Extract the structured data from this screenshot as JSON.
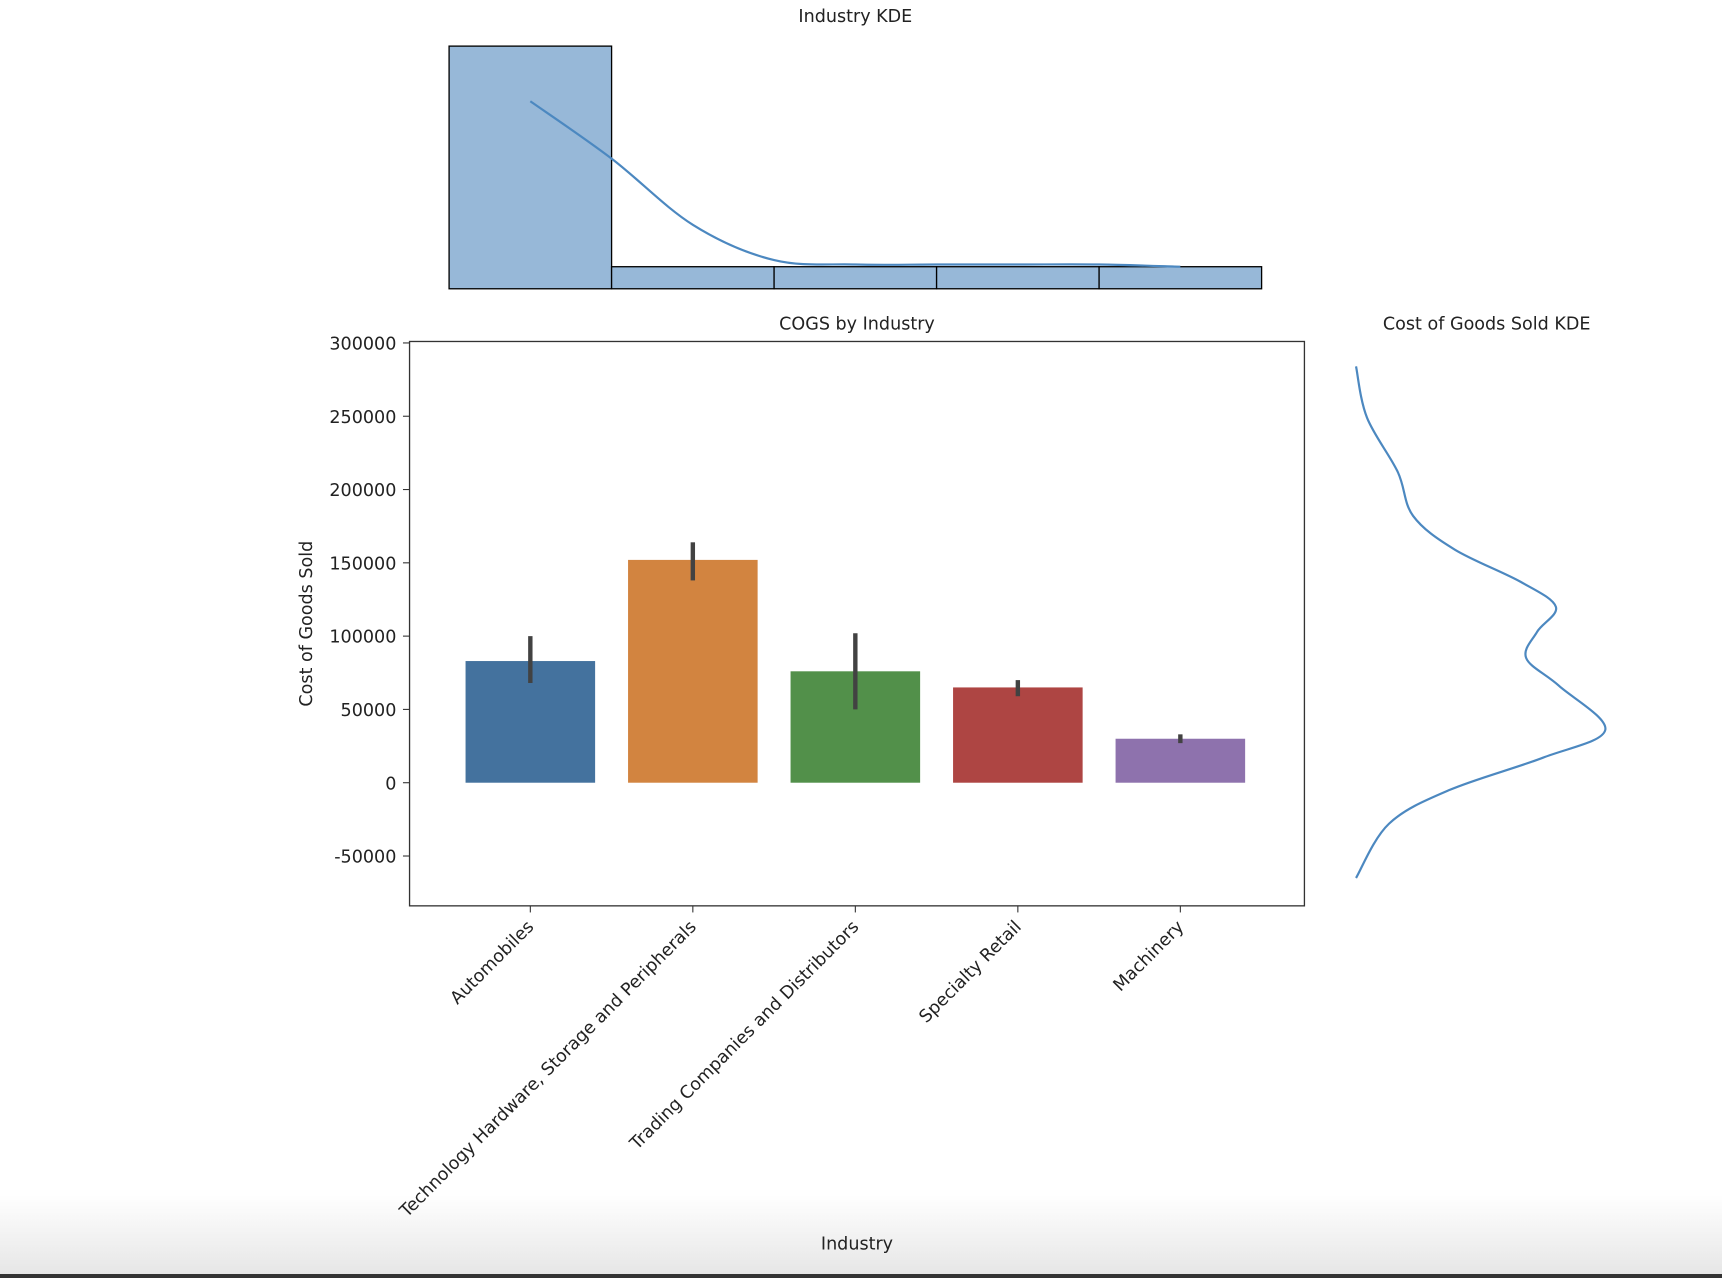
{
  "chart_data": [
    {
      "type": "histogram",
      "title": "Industry KDE",
      "bins": [
        -0.5,
        0.5,
        1.5,
        2.5,
        3.5,
        4.5
      ],
      "counts": [
        11,
        1,
        1,
        1,
        1
      ],
      "color": "#97b8d8",
      "kde_x": [
        0,
        0.5,
        1,
        1.5,
        2,
        2.5,
        3,
        3.5,
        4
      ],
      "kde_y": [
        8.5,
        5.9,
        2.9,
        1.3,
        1.1,
        1.1,
        1.1,
        1.1,
        1.0
      ],
      "kde_color": "#4c88c0"
    },
    {
      "type": "bar",
      "title": "COGS by Industry",
      "xlabel": "Industry",
      "ylabel": "Cost of Goods Sold",
      "categories": [
        "Automobiles",
        "Technology Hardware, Storage and Peripherals",
        "Trading Companies and Distributors",
        "Specialty Retail",
        "Machinery"
      ],
      "values": [
        83000,
        152000,
        76000,
        65000,
        30000
      ],
      "ci_low": [
        68000,
        138000,
        50000,
        59000,
        27000
      ],
      "ci_high": [
        100000,
        164000,
        102000,
        70000,
        33000
      ],
      "colors": [
        "#44729e",
        "#d28440",
        "#52904a",
        "#ae4543",
        "#8e72ad"
      ],
      "ylim": [
        -84000,
        301000
      ],
      "yticks": [
        -50000,
        0,
        50000,
        100000,
        150000,
        200000,
        250000,
        300000
      ]
    },
    {
      "type": "kde-vertical",
      "title": "Cost of Goods Sold KDE",
      "color": "#4c88c0",
      "y": [
        284000,
        249000,
        212000,
        182000,
        159000,
        137000,
        120000,
        103000,
        85000,
        66000,
        36000,
        17000,
        -5000,
        -28000,
        -65000
      ],
      "density": [
        0,
        0.1,
        0.38,
        0.52,
        0.9,
        1.5,
        1.82,
        1.65,
        1.55,
        1.85,
        2.27,
        1.7,
        0.85,
        0.3,
        0
      ],
      "xlim": [
        0,
        2.5
      ]
    }
  ]
}
